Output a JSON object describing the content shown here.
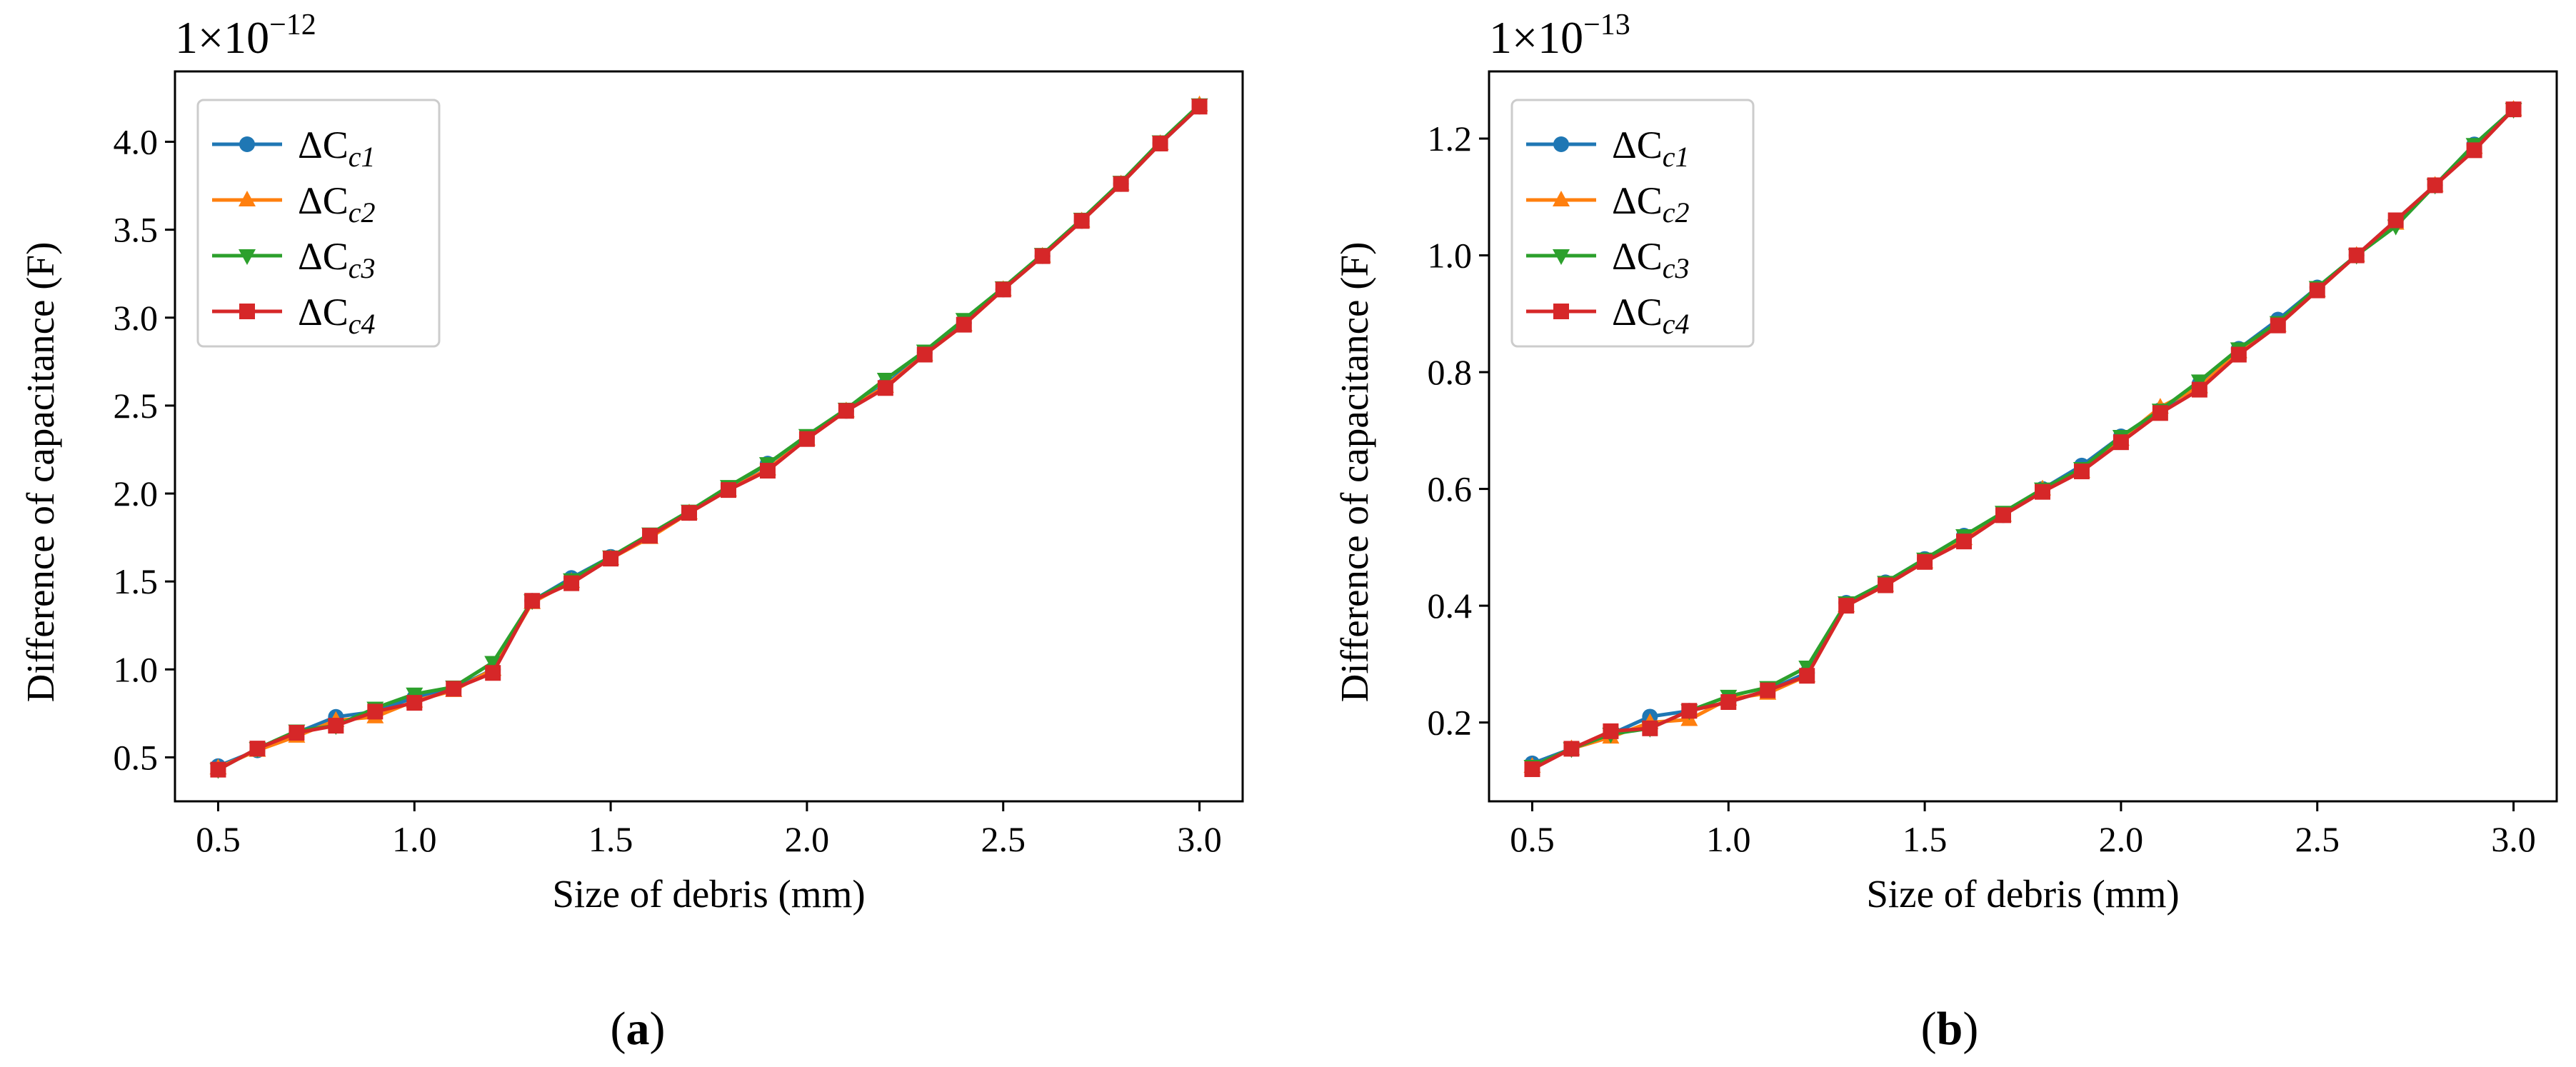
{
  "chart_data": [
    {
      "type": "line",
      "panel_label": "a",
      "multiplier": {
        "base": "1×10",
        "exponent": "−12"
      },
      "xlabel": "Size of debris (mm)",
      "ylabel": "Difference of capacitance (F)",
      "xlim": [
        0.39,
        3.11
      ],
      "ylim": [
        0.25,
        4.4
      ],
      "xticks": [
        "0.5",
        "1.0",
        "1.5",
        "2.0",
        "2.5",
        "3.0"
      ],
      "yticks": [
        "0.5",
        "1.0",
        "1.5",
        "2.0",
        "2.5",
        "3.0",
        "3.5",
        "4.0"
      ],
      "x": [
        0.5,
        0.6,
        0.7,
        0.8,
        0.9,
        1.0,
        1.1,
        1.2,
        1.3,
        1.4,
        1.5,
        1.6,
        1.7,
        1.8,
        1.9,
        2.0,
        2.1,
        2.2,
        2.3,
        2.4,
        2.5,
        2.6,
        2.7,
        2.8,
        2.9,
        3.0
      ],
      "legend_position": "upper-left",
      "series": [
        {
          "name": "ΔC",
          "sub": "c1",
          "color": "#1f77b4",
          "marker": "circle",
          "values": [
            0.45,
            0.54,
            0.64,
            0.73,
            0.76,
            0.84,
            0.89,
            1.0,
            1.39,
            1.52,
            1.64,
            1.76,
            1.89,
            2.03,
            2.17,
            2.32,
            2.47,
            2.62,
            2.8,
            2.97,
            3.16,
            3.35,
            3.55,
            3.76,
            3.99,
            4.2
          ]
        },
        {
          "name": "ΔC",
          "sub": "c2",
          "color": "#ff7f0e",
          "marker": "triangle-up",
          "values": [
            0.44,
            0.54,
            0.62,
            0.71,
            0.73,
            0.82,
            0.88,
            1.0,
            1.38,
            1.5,
            1.63,
            1.75,
            1.89,
            2.02,
            2.14,
            2.31,
            2.47,
            2.61,
            2.79,
            2.96,
            3.16,
            3.35,
            3.55,
            3.76,
            3.99,
            4.21
          ]
        },
        {
          "name": "ΔC",
          "sub": "c3",
          "color": "#2ca02c",
          "marker": "triangle-down",
          "values": [
            0.43,
            0.55,
            0.65,
            0.68,
            0.78,
            0.86,
            0.9,
            1.04,
            1.39,
            1.51,
            1.64,
            1.77,
            1.9,
            2.04,
            2.17,
            2.33,
            2.48,
            2.65,
            2.81,
            2.99,
            3.17,
            3.36,
            3.56,
            3.77,
            4.0,
            4.21
          ]
        },
        {
          "name": "ΔC",
          "sub": "c4",
          "color": "#d62728",
          "marker": "square",
          "values": [
            0.43,
            0.55,
            0.64,
            0.68,
            0.76,
            0.81,
            0.89,
            0.98,
            1.39,
            1.49,
            1.63,
            1.76,
            1.89,
            2.02,
            2.13,
            2.31,
            2.47,
            2.6,
            2.79,
            2.96,
            3.16,
            3.35,
            3.55,
            3.76,
            3.99,
            4.2
          ]
        }
      ]
    },
    {
      "type": "line",
      "panel_label": "b",
      "multiplier": {
        "base": "1×10",
        "exponent": "−13"
      },
      "xlabel": "Size of debris (mm)",
      "ylabel": "Difference of capacitance (F)",
      "xlim": [
        0.39,
        3.11
      ],
      "ylim": [
        0.065,
        1.315
      ],
      "xticks": [
        "0.5",
        "1.0",
        "1.5",
        "2.0",
        "2.5",
        "3.0"
      ],
      "yticks": [
        "0.2",
        "0.4",
        "0.6",
        "0.8",
        "1.0",
        "1.2"
      ],
      "x": [
        0.5,
        0.6,
        0.7,
        0.8,
        0.9,
        1.0,
        1.1,
        1.2,
        1.3,
        1.4,
        1.5,
        1.6,
        1.7,
        1.8,
        1.9,
        2.0,
        2.1,
        2.2,
        2.3,
        2.4,
        2.5,
        2.6,
        2.7,
        2.8,
        2.9,
        3.0
      ],
      "legend_position": "upper-left",
      "series": [
        {
          "name": "ΔC",
          "sub": "c1",
          "color": "#1f77b4",
          "marker": "circle",
          "values": [
            0.13,
            0.155,
            0.18,
            0.21,
            0.22,
            0.235,
            0.255,
            0.285,
            0.405,
            0.44,
            0.48,
            0.52,
            0.555,
            0.6,
            0.64,
            0.69,
            0.735,
            0.78,
            0.84,
            0.89,
            0.945,
            1.0,
            1.06,
            1.12,
            1.19,
            1.25
          ]
        },
        {
          "name": "ΔC",
          "sub": "c2",
          "color": "#ff7f0e",
          "marker": "triangle-up",
          "values": [
            0.125,
            0.155,
            0.175,
            0.2,
            0.205,
            0.24,
            0.25,
            0.28,
            0.4,
            0.435,
            0.475,
            0.515,
            0.555,
            0.6,
            0.63,
            0.685,
            0.74,
            0.775,
            0.835,
            0.88,
            0.94,
            1.0,
            1.055,
            1.12,
            1.185,
            1.25
          ]
        },
        {
          "name": "ΔC",
          "sub": "c3",
          "color": "#2ca02c",
          "marker": "triangle-down",
          "values": [
            0.125,
            0.155,
            0.18,
            0.19,
            0.22,
            0.245,
            0.26,
            0.295,
            0.405,
            0.44,
            0.48,
            0.52,
            0.56,
            0.6,
            0.635,
            0.69,
            0.735,
            0.785,
            0.84,
            0.885,
            0.945,
            1.0,
            1.05,
            1.12,
            1.19,
            1.25
          ]
        },
        {
          "name": "ΔC",
          "sub": "c4",
          "color": "#d62728",
          "marker": "square",
          "values": [
            0.12,
            0.155,
            0.185,
            0.19,
            0.22,
            0.235,
            0.255,
            0.28,
            0.4,
            0.435,
            0.475,
            0.51,
            0.555,
            0.595,
            0.63,
            0.68,
            0.73,
            0.77,
            0.83,
            0.88,
            0.94,
            1.0,
            1.06,
            1.12,
            1.18,
            1.25
          ]
        }
      ]
    }
  ]
}
